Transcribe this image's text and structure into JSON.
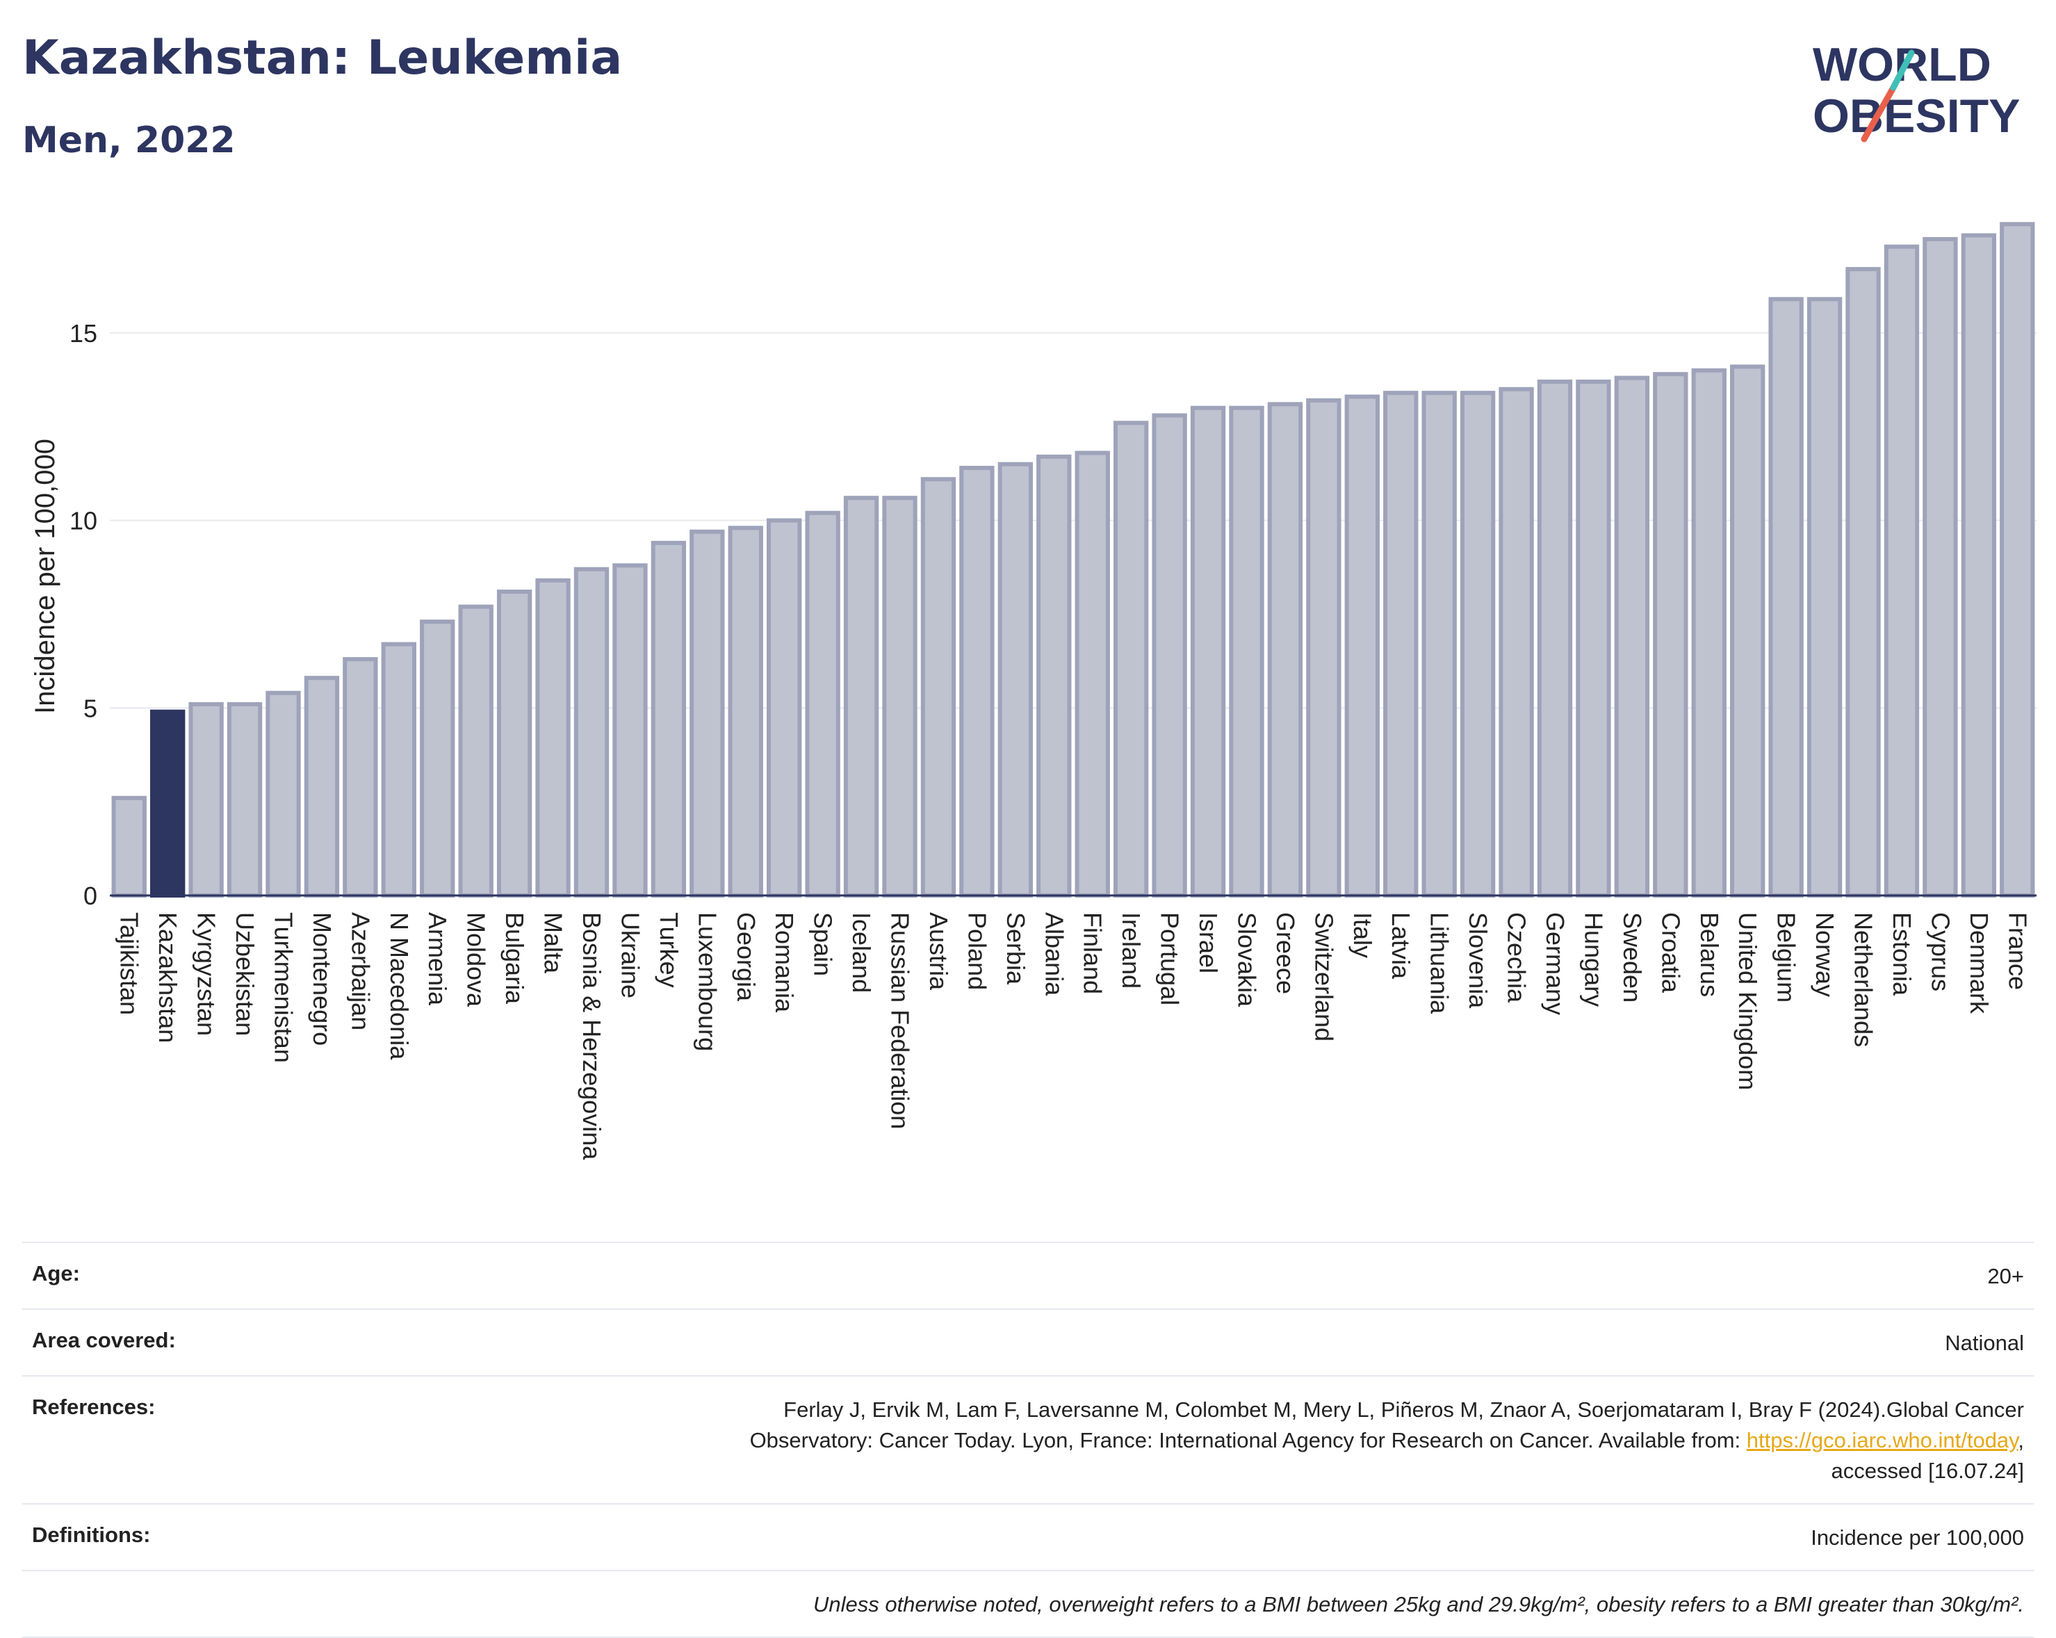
{
  "header": {
    "title": "Kazakhstan: Leukemia",
    "subtitle": "Men, 2022"
  },
  "logo": {
    "line1": "WORLD",
    "line2": "OBESITY"
  },
  "colors": {
    "highlight": "#2d3561",
    "bar": "#bfc3d0",
    "bar_stroke": "#9ea3ba",
    "title": "#2d3561",
    "grid": "#e8e8ee",
    "accent_red": "#e8604c",
    "accent_teal": "#3fbfb5"
  },
  "chart_data": {
    "type": "bar",
    "ylabel": "Incidence per 100,000",
    "ylim": [
      0,
      18.5
    ],
    "yticks": [
      0,
      5,
      10,
      15
    ],
    "highlight": "Kazakhstan",
    "categories": [
      "Tajikistan",
      "Kazakhstan",
      "Kyrgyzstan",
      "Uzbekistan",
      "Turkmenistan",
      "Montenegro",
      "Azerbaijan",
      "N Macedonia",
      "Armenia",
      "Moldova",
      "Bulgaria",
      "Malta",
      "Bosnia & Herzegovina",
      "Ukraine",
      "Turkey",
      "Luxembourg",
      "Georgia",
      "Romania",
      "Spain",
      "Iceland",
      "Russian Federation",
      "Austria",
      "Poland",
      "Serbia",
      "Albania",
      "Finland",
      "Ireland",
      "Portugal",
      "Israel",
      "Slovakia",
      "Greece",
      "Switzerland",
      "Italy",
      "Latvia",
      "Lithuania",
      "Slovenia",
      "Czechia",
      "Germany",
      "Hungary",
      "Sweden",
      "Croatia",
      "Belarus",
      "United Kingdom",
      "Belgium",
      "Norway",
      "Netherlands",
      "Estonia",
      "Cyprus",
      "Denmark",
      "France"
    ],
    "values": [
      2.6,
      4.9,
      5.1,
      5.1,
      5.4,
      5.8,
      6.3,
      6.7,
      7.3,
      7.7,
      8.1,
      8.4,
      8.7,
      8.8,
      9.4,
      9.7,
      9.8,
      10.0,
      10.2,
      10.6,
      10.6,
      11.1,
      11.4,
      11.5,
      11.7,
      11.8,
      12.6,
      12.8,
      13.0,
      13.0,
      13.1,
      13.2,
      13.3,
      13.4,
      13.4,
      13.4,
      13.5,
      13.7,
      13.7,
      13.8,
      13.9,
      14.0,
      14.1,
      15.9,
      15.9,
      16.7,
      17.3,
      17.5,
      17.6,
      17.9
    ]
  },
  "meta": {
    "age_label": "Age:",
    "age_value": "20+",
    "area_label": "Area covered:",
    "area_value": "National",
    "ref_label": "References:",
    "ref_text1": "Ferlay J, Ervik M, Lam F, Laversanne M, Colombet M, Mery L, Piñeros M, Znaor A, Soerjomataram I, Bray F (2024).Global Cancer",
    "ref_text2": "Observatory: Cancer Today. Lyon, France: International Agency for Research on Cancer. Available from: ",
    "ref_link": "https://gco.iarc.who.int/today",
    "ref_text3": "accessed [16.07.24]",
    "def_label": "Definitions:",
    "def_value": "Incidence per 100,000",
    "note": "Unless otherwise noted, overweight refers to a BMI between 25kg and 29.9kg/m², obesity refers to a BMI greater than 30kg/m²."
  }
}
